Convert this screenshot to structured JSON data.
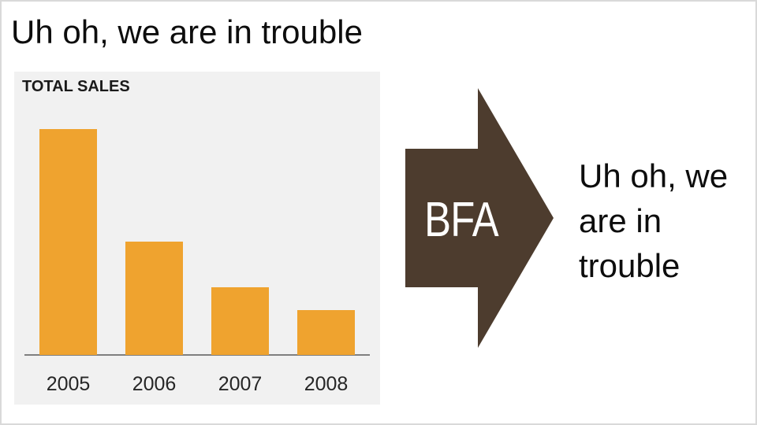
{
  "slide": {
    "title": "Uh oh, we are in trouble",
    "background": "#ffffff",
    "border_color": "#d9d9d9"
  },
  "chart_panel": {
    "background": "#f1f1f1"
  },
  "chart_data": {
    "type": "bar",
    "title": "TOTAL SALES",
    "categories": [
      "2005",
      "2006",
      "2007",
      "2008"
    ],
    "values": [
      100,
      50,
      30,
      20
    ],
    "xlabel": "",
    "ylabel": "",
    "ylim": [
      0,
      100
    ],
    "grid": false,
    "legend": "none",
    "y_axis_labels_shown": false,
    "bar_color": "#efa32f",
    "axis_color": "#7f7f7f"
  },
  "arrow": {
    "label": "BFA",
    "color": "#4d3c2e",
    "text_color": "#ffffff",
    "direction": "right"
  },
  "callout": {
    "text": "Uh oh, we\nare in\ntrouble"
  }
}
